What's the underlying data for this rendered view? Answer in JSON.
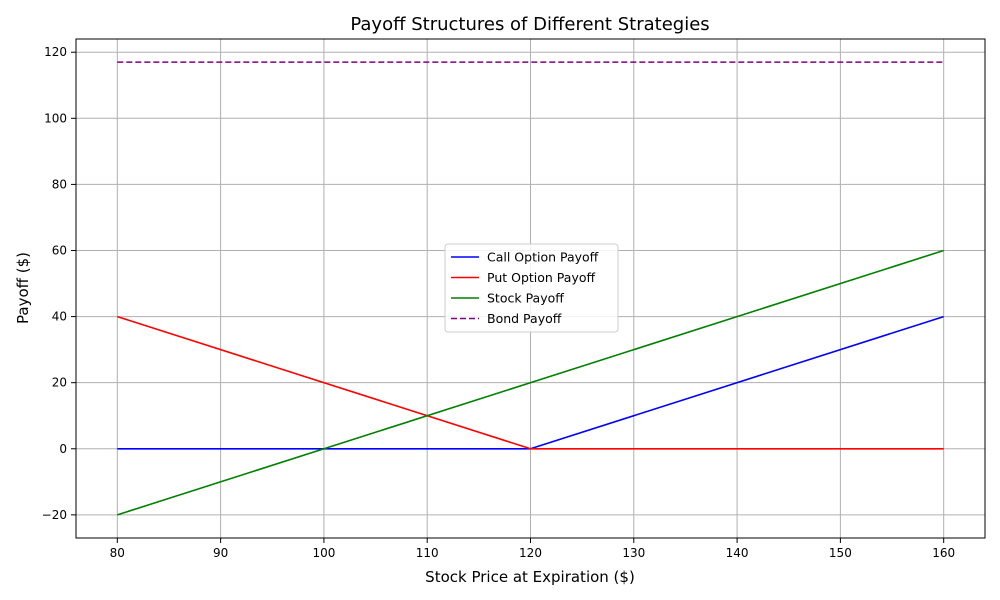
{
  "chart_data": {
    "type": "line",
    "title": "Payoff Structures of Different Strategies",
    "xlabel": "Stock Price at Expiration ($)",
    "ylabel": "Payoff ($)",
    "xlim": [
      76,
      164
    ],
    "ylim": [
      -27,
      124
    ],
    "xticks": [
      80,
      90,
      100,
      110,
      120,
      130,
      140,
      150,
      160
    ],
    "yticks": [
      -20,
      0,
      20,
      40,
      60,
      80,
      100,
      120
    ],
    "grid": true,
    "legend_position": "center-right",
    "series": [
      {
        "name": "Call Option Payoff",
        "color": "#0000ff",
        "dash": "solid",
        "x": [
          80,
          120,
          160
        ],
        "y": [
          0,
          0,
          40
        ]
      },
      {
        "name": "Put Option Payoff",
        "color": "#ff0000",
        "dash": "solid",
        "x": [
          80,
          120,
          160
        ],
        "y": [
          40,
          0,
          0
        ]
      },
      {
        "name": "Stock Payoff",
        "color": "#008000",
        "dash": "solid",
        "x": [
          80,
          160
        ],
        "y": [
          -20,
          60
        ]
      },
      {
        "name": "Bond Payoff",
        "color": "#800080",
        "dash": "dashed",
        "x": [
          80,
          160
        ],
        "y": [
          117,
          117
        ]
      }
    ]
  }
}
